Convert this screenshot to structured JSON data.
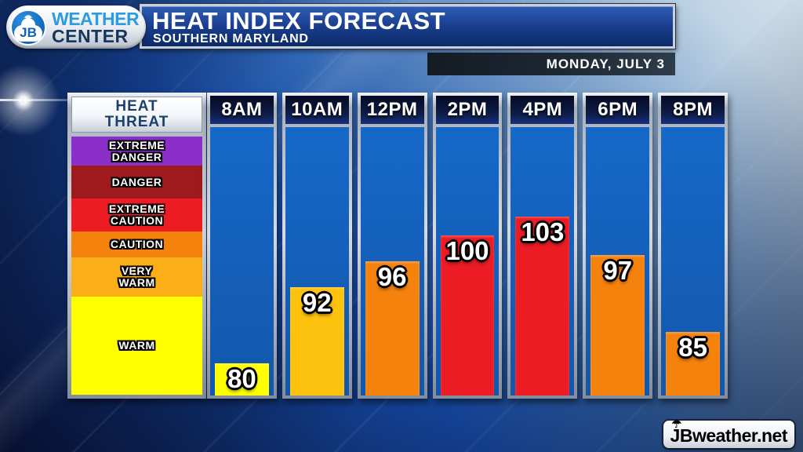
{
  "header": {
    "station": {
      "monogram": "JB",
      "line1": "WEATHER",
      "line2": "CENTER"
    },
    "title": "HEAT INDEX FORECAST",
    "subtitle": "SOUTHERN MARYLAND",
    "date": "MONDAY, JULY 3"
  },
  "legend": {
    "title_line1": "HEAT",
    "title_line2": "THREAT",
    "bands": [
      {
        "label_lines": [
          "EXTREME",
          "DANGER"
        ],
        "color": "#8B2FC9",
        "from": 110,
        "to": 114.5
      },
      {
        "label_lines": [
          "DANGER"
        ],
        "color": "#9E1A1C",
        "from": 105,
        "to": 110
      },
      {
        "label_lines": [
          "EXTREME",
          "CAUTION"
        ],
        "color": "#ED1C24",
        "from": 100,
        "to": 105
      },
      {
        "label_lines": [
          "CAUTION"
        ],
        "color": "#F5820D",
        "from": 96,
        "to": 100
      },
      {
        "label_lines": [
          "VERY",
          "WARM"
        ],
        "color": "#FBAE17",
        "from": 90,
        "to": 96
      },
      {
        "label_lines": [
          "WARM"
        ],
        "color": "#FFFF00",
        "from": 75,
        "to": 90
      }
    ]
  },
  "chart_data": {
    "type": "bar",
    "title": "HEAT INDEX FORECAST",
    "subtitle": "SOUTHERN MARYLAND",
    "date": "MONDAY, JULY 3",
    "categories": [
      "8AM",
      "10AM",
      "12PM",
      "2PM",
      "4PM",
      "6PM",
      "8PM"
    ],
    "values": [
      80,
      92,
      96,
      100,
      103,
      97,
      85
    ],
    "bar_colors": [
      "#FFFF00",
      "#FDC20D",
      "#F5820D",
      "#ED1C24",
      "#ED1C24",
      "#F5820D",
      "#F5820D"
    ],
    "value_range": [
      75,
      117
    ],
    "grid": false,
    "legend_position": "left",
    "legend_title": "HEAT THREAT"
  },
  "footer": {
    "watermark": "JBweather.net"
  },
  "colors": {
    "column_blue": "#1461BD",
    "header_navy": "#0D1B45",
    "title_box_blue": "#1A3F8F",
    "frame_silver": "#C6CDD8",
    "station_blue": "#2E9BDF",
    "station_navy": "#14355C"
  },
  "icons": {
    "logo_umbrella": "umbrella-icon",
    "watermark_umbrella": "umbrella-icon"
  }
}
